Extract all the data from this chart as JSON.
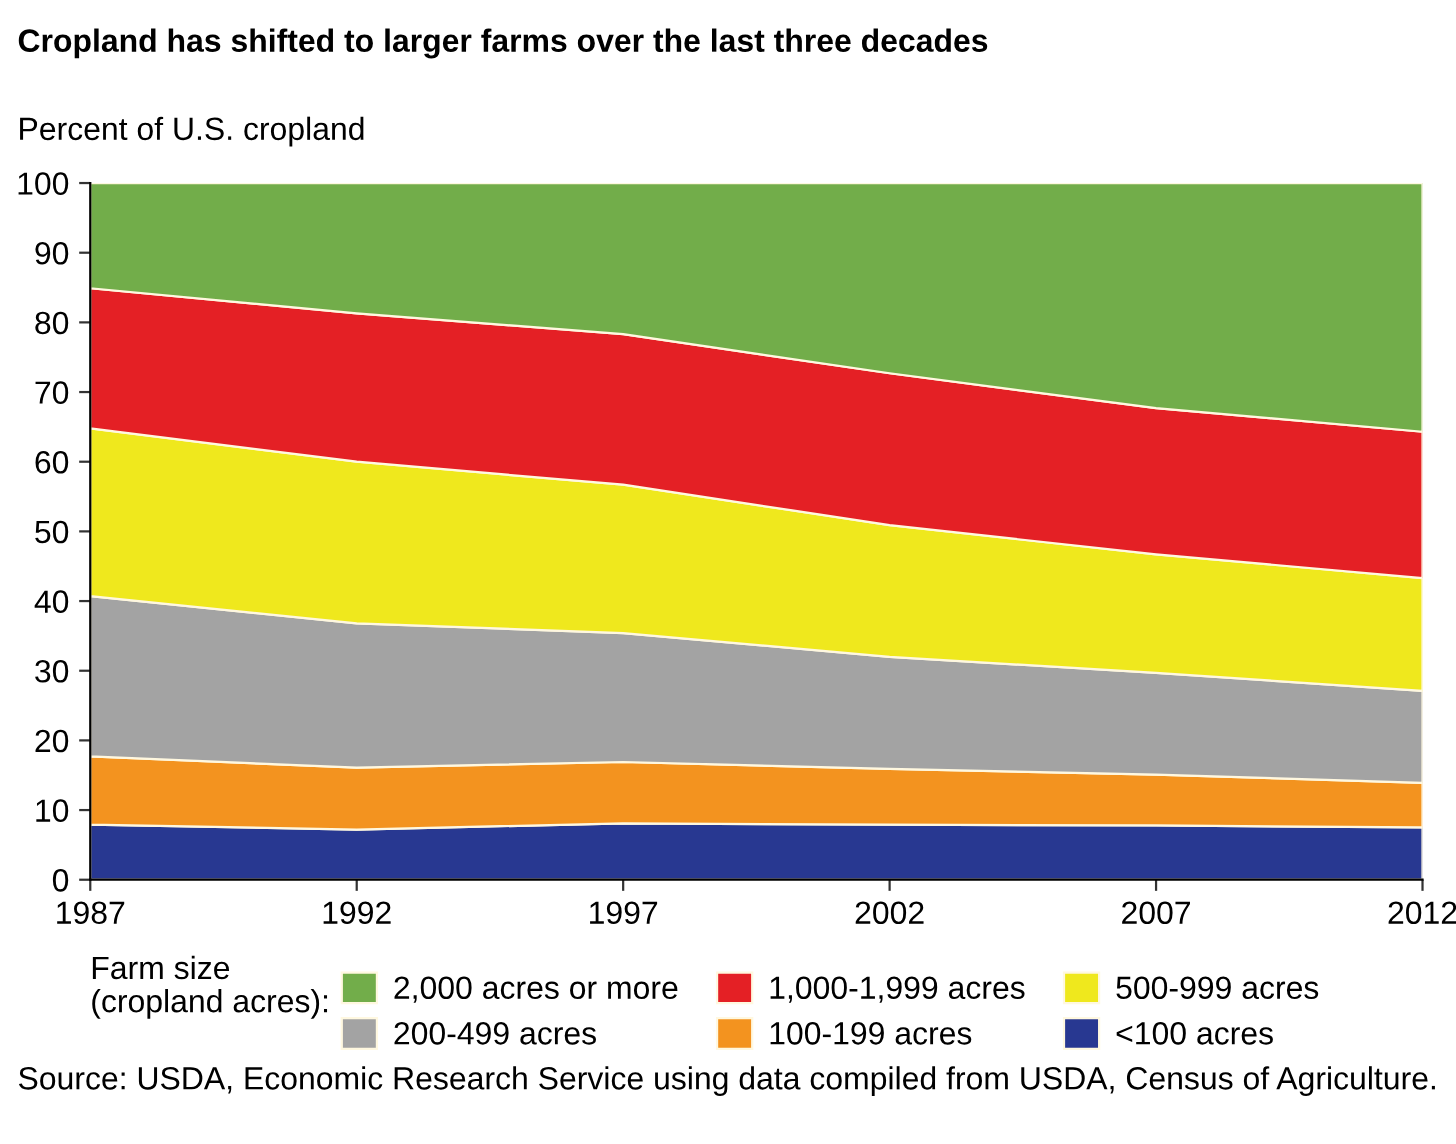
{
  "chart_data": {
    "type": "area",
    "stacked": true,
    "title": "Cropland has shifted to larger farms over the last three decades",
    "ylabel": "Percent of U.S. cropland",
    "legend_title": "Farm size\n(cropland acres):",
    "x": [
      1987,
      1992,
      1997,
      2002,
      2007,
      2012
    ],
    "series": [
      {
        "name": "<100 acres",
        "color": "#283891",
        "values": [
          7.9,
          7.2,
          8.1,
          7.9,
          7.8,
          7.5
        ]
      },
      {
        "name": "100-199 acres",
        "color": "#f3931f",
        "values": [
          9.8,
          8.9,
          8.8,
          8.0,
          7.3,
          6.4
        ]
      },
      {
        "name": "200-499 acres",
        "color": "#a3a3a3",
        "values": [
          23.0,
          20.7,
          18.5,
          16.1,
          14.6,
          13.2
        ]
      },
      {
        "name": "500-999 acres",
        "color": "#efe81d",
        "values": [
          24.1,
          23.2,
          21.3,
          18.9,
          17.0,
          16.2
        ]
      },
      {
        "name": "1,000-1,999 acres",
        "color": "#e42025",
        "values": [
          20.1,
          21.3,
          21.6,
          21.8,
          21.0,
          21.0
        ]
      },
      {
        "name": "2,000 acres or more",
        "color": "#72ad4a",
        "values": [
          15.1,
          18.7,
          21.7,
          27.3,
          32.3,
          35.7
        ]
      }
    ],
    "xlim": [
      1987,
      2012
    ],
    "xticks": [
      1987,
      1992,
      1997,
      2002,
      2007,
      2012
    ],
    "ylim": [
      0,
      100
    ],
    "yticks": [
      0,
      10,
      20,
      30,
      40,
      50,
      60,
      70,
      80,
      90,
      100
    ],
    "grid": false,
    "legend": "bottom",
    "annotations": [
      "Source: USDA, Economic Research Service using data compiled from USDA, Census of Agriculture."
    ]
  }
}
